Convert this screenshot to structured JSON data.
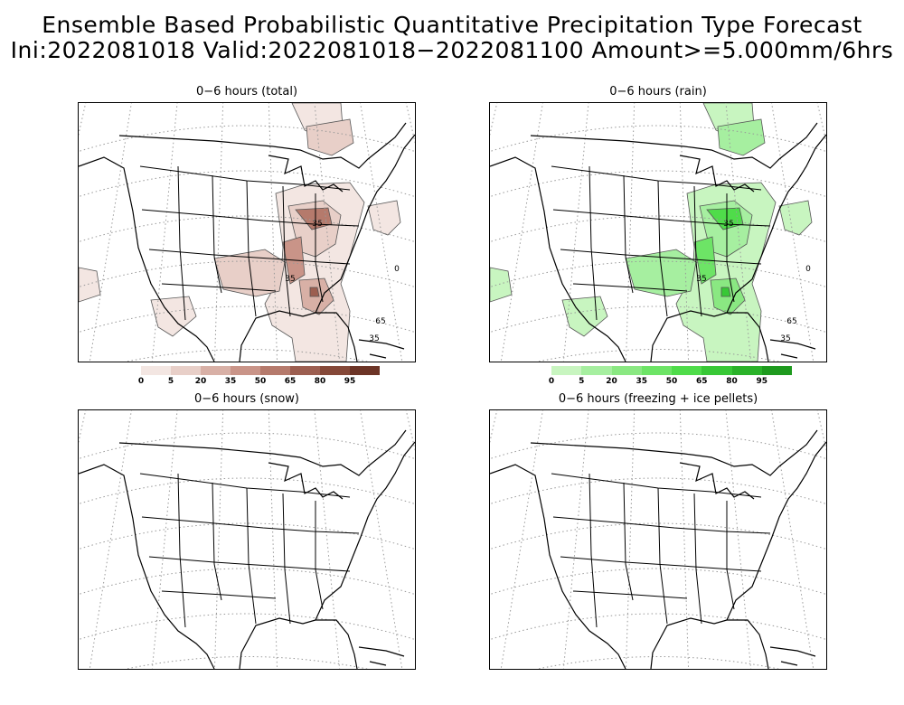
{
  "header": {
    "title_line1": "Ensemble Based Probabilistic Quantitative Precipitation Type Forecast",
    "title_line2": "Ini:2022081018 Valid:2022081018−2022081100 Amount>=5.000mm/6hrs"
  },
  "panels": [
    {
      "title": "0−6 hours (total)"
    },
    {
      "title": "0−6 hours (rain)"
    },
    {
      "title": "0−6 hours (snow)"
    },
    {
      "title": "0−6 hours (freezing + ice pellets)"
    }
  ],
  "contour_labels": {
    "total": [
      "35",
      "65",
      "35",
      "35",
      "0"
    ],
    "rain": [
      "35",
      "65",
      "35",
      "35",
      "0"
    ]
  },
  "colorbars": {
    "total": {
      "labels": [
        "0",
        "5",
        "20",
        "35",
        "50",
        "65",
        "80",
        "95"
      ],
      "colors": [
        "#f3e6e2",
        "#e8cfc8",
        "#d8b0a6",
        "#c99488",
        "#b57a6c",
        "#9c5e50",
        "#854838",
        "#6c3426"
      ]
    },
    "rain": {
      "labels": [
        "0",
        "5",
        "20",
        "35",
        "50",
        "65",
        "80",
        "95"
      ],
      "colors": [
        "#c8f5c0",
        "#a6efa0",
        "#8ae882",
        "#6de466",
        "#4fdc4a",
        "#38c836",
        "#2ab229",
        "#1e9a1e"
      ]
    }
  }
}
